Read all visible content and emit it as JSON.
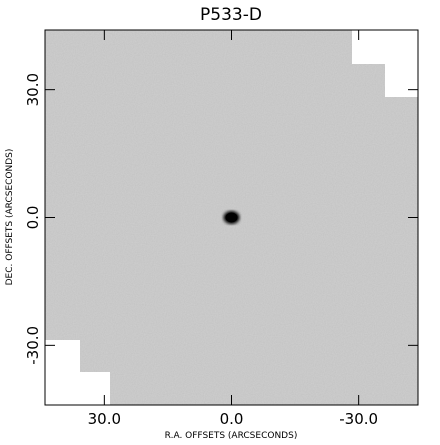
{
  "chart_data": {
    "type": "image",
    "title": "P533-D",
    "x_label": "R.A. OFFSETS (ARCSECONDS)",
    "y_label": "DEC. OFFSETS (ARCSECONDS)",
    "xlim": [
      44,
      -44
    ],
    "ylim": [
      -44,
      44
    ],
    "xticks": [
      {
        "value": 30,
        "label": "30.0"
      },
      {
        "value": 0,
        "label": "0.0"
      },
      {
        "value": -30,
        "label": "-30.0"
      }
    ],
    "yticks": [
      {
        "value": -30,
        "label": "-30.0"
      },
      {
        "value": 0,
        "label": "0.0"
      },
      {
        "value": 30,
        "label": "30.0"
      }
    ],
    "source": {
      "x": 0,
      "y": 0
    }
  }
}
